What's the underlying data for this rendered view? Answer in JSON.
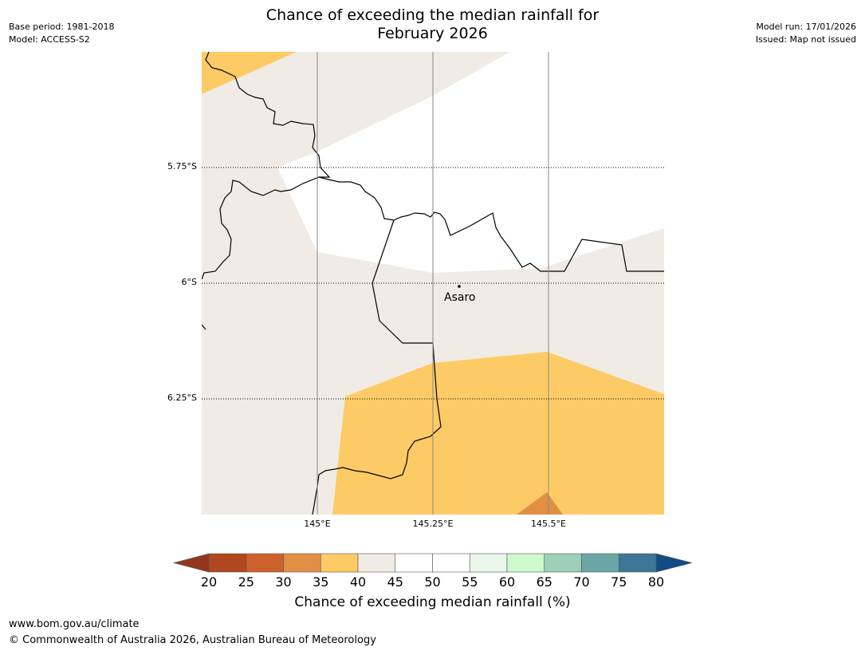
{
  "title": {
    "line1": "Chance of exceeding the median rainfall for",
    "line2": "February 2026"
  },
  "meta_left": {
    "base_period": "Base period: 1981-2018",
    "model": "Model: ACCESS-S2"
  },
  "meta_right": {
    "model_run": "Model run: 17/01/2026",
    "issued": "Issued: Map not issued"
  },
  "map": {
    "lat_labels": [
      "5.75°S",
      "6°S",
      "6.25°S"
    ],
    "lon_labels": [
      "145°E",
      "145.25°E",
      "145.5°E"
    ],
    "place": {
      "name": "Asaro",
      "lon": 145.33,
      "lat": -6.01
    },
    "colors": {
      "land_40_45": "#f0ebe5",
      "land_35_40": "#fdcb65",
      "land_30_35": "#e08f45",
      "white_45_55": "#ffffff"
    }
  },
  "colorbar": {
    "ticks": [
      "20",
      "25",
      "30",
      "35",
      "40",
      "45",
      "50",
      "55",
      "60",
      "65",
      "70",
      "75",
      "80"
    ],
    "low_extend_color": "#92361f",
    "high_extend_color": "#134b84",
    "colors": [
      "#b0471f",
      "#cd612c",
      "#e08f45",
      "#fdcb65",
      "#f0ebe5",
      "#ffffff",
      "#ffffff",
      "#eaf7ea",
      "#ccfacc",
      "#9cd0b8",
      "#6ca5a6",
      "#3f7698"
    ],
    "title": "Chance of exceeding median rainfall (%)"
  },
  "footer": {
    "url": "www.bom.gov.au/climate",
    "copyright": "© Commonwealth of Australia 2026, Australian Bureau of Meteorology"
  }
}
